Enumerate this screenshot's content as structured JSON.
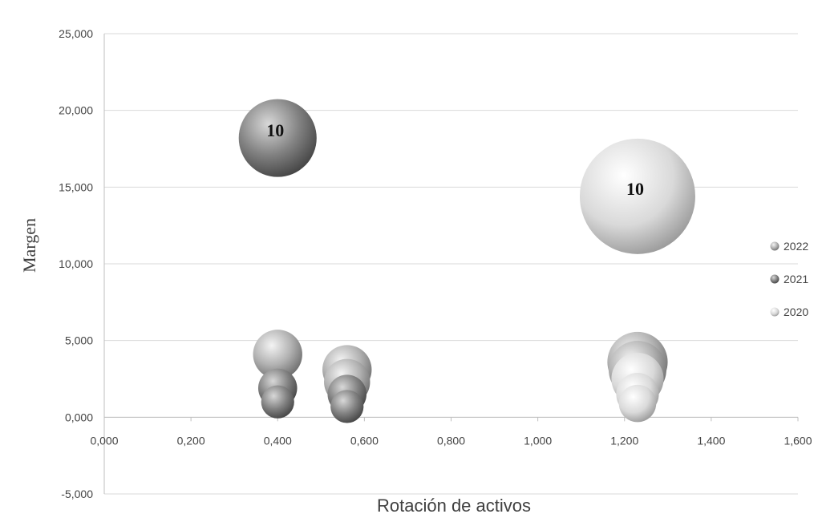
{
  "chart_data": {
    "type": "bubble",
    "xlabel": "Rotación de activos",
    "ylabel": "Margen",
    "xlim": [
      0,
      1.6
    ],
    "ylim": [
      -5,
      25
    ],
    "x_ticks": [
      "0,000",
      "0,200",
      "0,400",
      "0,600",
      "0,800",
      "1,000",
      "1,200",
      "1,400",
      "1,600"
    ],
    "y_ticks": [
      "-5,000",
      "0,000",
      "5,000",
      "10,000",
      "15,000",
      "20,000",
      "25,000"
    ],
    "grid": "horizontal",
    "legend_position": "right",
    "legend": [
      "2022",
      "2021",
      "2020"
    ],
    "series": [
      {
        "name": "2022",
        "color": "#a9a9a9",
        "points": [
          {
            "x": 0.4,
            "y": 4.1,
            "size": 4
          },
          {
            "x": 0.56,
            "y": 3.1,
            "size": 4
          },
          {
            "x": 0.56,
            "y": 2.3,
            "size": 3.5
          },
          {
            "x": 1.23,
            "y": 3.6,
            "size": 6
          },
          {
            "x": 1.23,
            "y": 3.1,
            "size": 5.5
          }
        ]
      },
      {
        "name": "2021",
        "color": "#7a7a7a",
        "points": [
          {
            "x": 0.4,
            "y": 18.2,
            "size": 10,
            "label": "10"
          },
          {
            "x": 0.4,
            "y": 1.9,
            "size": 2.5
          },
          {
            "x": 0.4,
            "y": 1.0,
            "size": 1.8
          },
          {
            "x": 0.56,
            "y": 1.5,
            "size": 2.5
          },
          {
            "x": 0.56,
            "y": 0.7,
            "size": 1.8
          }
        ]
      },
      {
        "name": "2020",
        "color": "#d6d6d6",
        "points": [
          {
            "x": 1.23,
            "y": 14.4,
            "size": 22,
            "label": "10"
          },
          {
            "x": 1.23,
            "y": 2.5,
            "size": 4.5
          },
          {
            "x": 1.23,
            "y": 1.5,
            "size": 3.0
          },
          {
            "x": 1.23,
            "y": 0.9,
            "size": 2.3
          }
        ]
      }
    ]
  }
}
